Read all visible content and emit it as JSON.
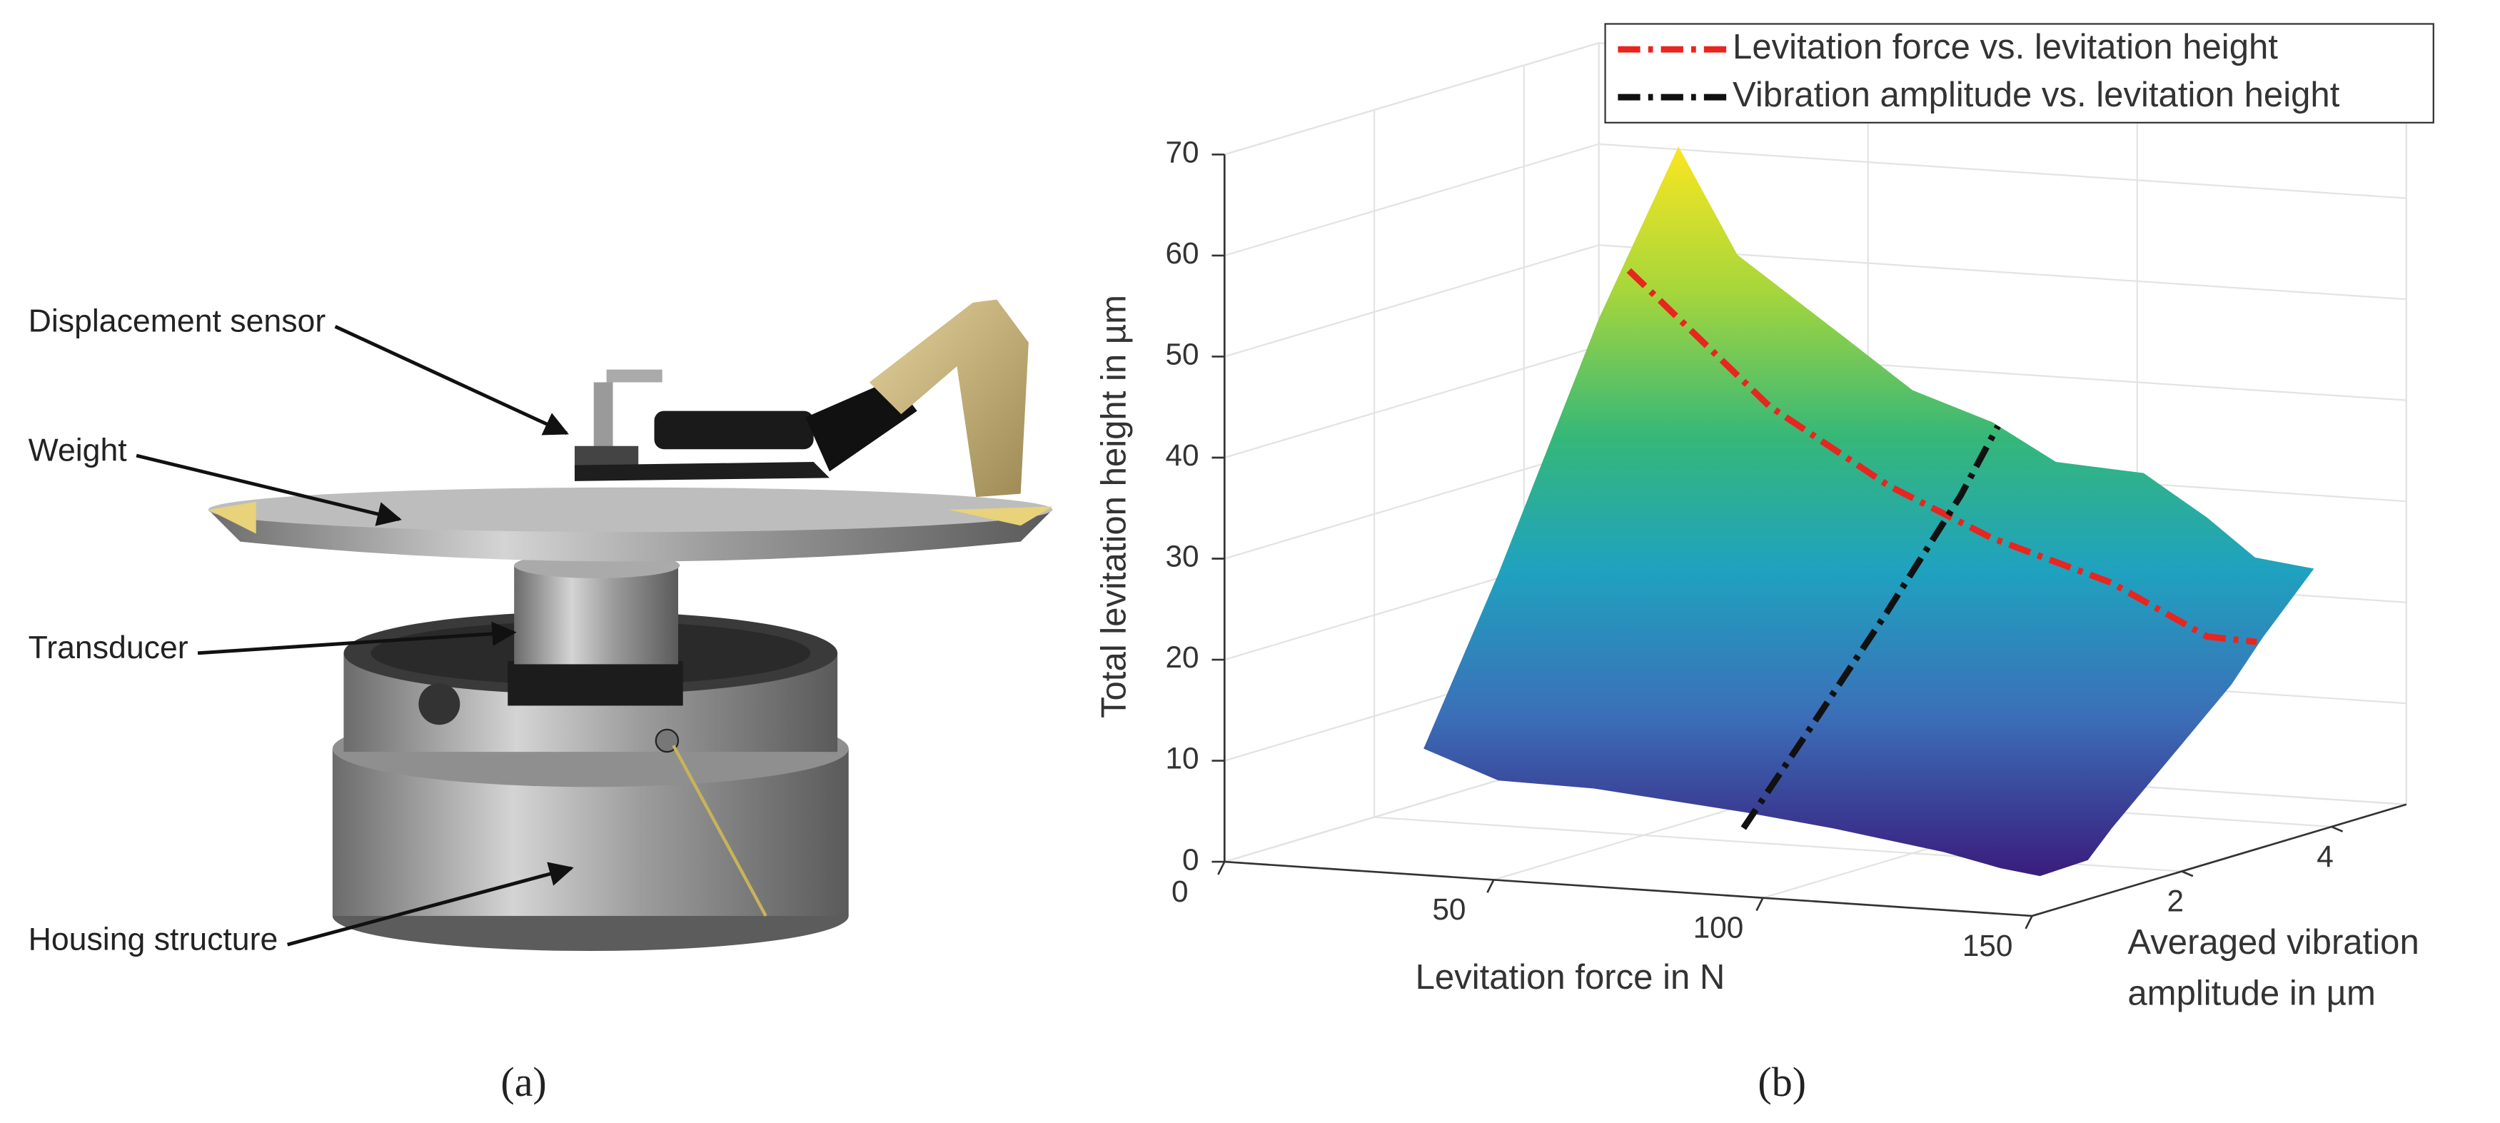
{
  "panel_a": {
    "labels": [
      "Displacement sensor",
      "Weight",
      "Transducer",
      "Housing structure"
    ],
    "caption": "(a)"
  },
  "chart_data": {
    "type": "line3d",
    "caption": "(b)",
    "xlabel": "Levitation force in N",
    "ylabel": [
      "Averaged vibration",
      "amplitude in µm"
    ],
    "zlabel": "Total levitation height in µm",
    "xlim": [
      0,
      150
    ],
    "ylim": [
      0,
      5
    ],
    "zlim": [
      0,
      70
    ],
    "xticks": [
      0,
      50,
      100,
      150
    ],
    "yticks": [
      2,
      4
    ],
    "zticks": [
      0,
      10,
      20,
      30,
      40,
      50,
      60,
      70
    ],
    "grid": true,
    "legend": "upper right",
    "series": [
      {
        "name": "Levitation force vs. levitation height",
        "color": "#e8251f",
        "x": [
          33.4,
          59.5,
          81.7,
          100.9,
          123,
          140.8,
          150
        ],
        "y": [
          3,
          3,
          3,
          3,
          3,
          3,
          3
        ],
        "z": [
          53.1,
          40.6,
          33.5,
          29.0,
          25.4,
          20.7,
          20.5
        ]
      },
      {
        "name": "Vibration amplitude vs. levitation height",
        "color": "#111111",
        "x": [
          95,
          95,
          95,
          95,
          95
        ],
        "y": [
          0.1,
          1,
          2,
          3,
          3.5
        ],
        "z": [
          6.5,
          14.5,
          23.5,
          33,
          38.8
        ]
      }
    ]
  }
}
